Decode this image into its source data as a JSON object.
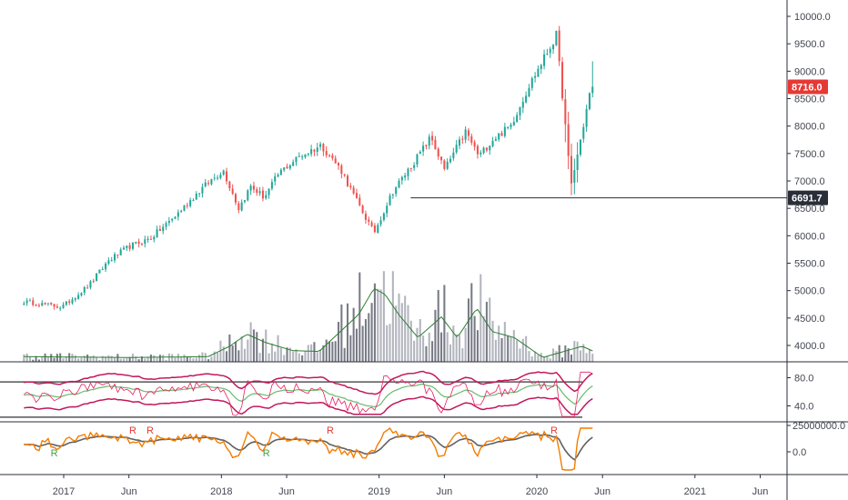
{
  "chart_data": {
    "type": "candlestick",
    "price_axis": {
      "ticks": [
        "10000.0",
        "9500.0",
        "9000.0",
        "8500.0",
        "8000.0",
        "7500.0",
        "7000.0",
        "6500.0",
        "6000.0",
        "5500.0",
        "5000.0",
        "4500.0",
        "4000.0"
      ],
      "range": [
        3800,
        10250
      ]
    },
    "x_axis": {
      "ticks": [
        "2017",
        "Jun",
        "2018",
        "Jun",
        "2019",
        "Jun",
        "2020",
        "Jun",
        "2021",
        "Jun"
      ],
      "range": [
        "2016-10-01",
        "2021-08-01"
      ]
    },
    "last_price": {
      "value": 8716.0,
      "label": "8716.0",
      "color": "#e53935"
    },
    "horizontal_line": {
      "value": 6691.7,
      "label": "6691.7",
      "start": "2019-03-15",
      "color": "#2a2e39"
    },
    "close_anchors": [
      {
        "date": "2016-10-01",
        "close": 4800
      },
      {
        "date": "2016-12-28",
        "close": 4700
      },
      {
        "date": "2017-03-01",
        "close": 5100
      },
      {
        "date": "2017-04-15",
        "close": 5550
      },
      {
        "date": "2017-06-01",
        "close": 5800
      },
      {
        "date": "2017-07-20",
        "close": 5950
      },
      {
        "date": "2017-09-15",
        "close": 6350
      },
      {
        "date": "2017-11-15",
        "close": 6850
      },
      {
        "date": "2018-01-05",
        "close": 7200
      },
      {
        "date": "2018-02-10",
        "close": 6500
      },
      {
        "date": "2018-03-10",
        "close": 6900
      },
      {
        "date": "2018-04-10",
        "close": 6700
      },
      {
        "date": "2018-05-15",
        "close": 7150
      },
      {
        "date": "2018-07-01",
        "close": 7450
      },
      {
        "date": "2018-08-20",
        "close": 7650
      },
      {
        "date": "2018-10-05",
        "close": 7200
      },
      {
        "date": "2018-10-30",
        "close": 6800
      },
      {
        "date": "2018-12-20",
        "close": 6050
      },
      {
        "date": "2019-02-01",
        "close": 6800
      },
      {
        "date": "2019-04-01",
        "close": 7450
      },
      {
        "date": "2019-05-01",
        "close": 7800
      },
      {
        "date": "2019-06-01",
        "close": 7200
      },
      {
        "date": "2019-07-20",
        "close": 7900
      },
      {
        "date": "2019-08-20",
        "close": 7450
      },
      {
        "date": "2019-09-20",
        "close": 7750
      },
      {
        "date": "2019-11-01",
        "close": 8000
      },
      {
        "date": "2019-12-15",
        "close": 8750
      },
      {
        "date": "2020-02-15",
        "close": 9650
      },
      {
        "date": "2020-03-01",
        "close": 8500
      },
      {
        "date": "2020-03-20",
        "close": 6900
      },
      {
        "date": "2020-04-15",
        "close": 7900
      },
      {
        "date": "2020-05-05",
        "close": 8700
      },
      {
        "date": "2020-05-12",
        "close": 8716
      }
    ],
    "volume": {
      "ma_anchors": [
        {
          "date": "2016-10-01",
          "v": 0.06
        },
        {
          "date": "2017-06-01",
          "v": 0.05
        },
        {
          "date": "2017-12-01",
          "v": 0.06
        },
        {
          "date": "2018-01-20",
          "v": 0.18
        },
        {
          "date": "2018-03-01",
          "v": 0.32
        },
        {
          "date": "2018-04-15",
          "v": 0.22
        },
        {
          "date": "2018-06-15",
          "v": 0.13
        },
        {
          "date": "2018-08-15",
          "v": 0.12
        },
        {
          "date": "2018-11-15",
          "v": 0.55
        },
        {
          "date": "2018-12-20",
          "v": 0.85
        },
        {
          "date": "2019-01-15",
          "v": 0.78
        },
        {
          "date": "2019-02-15",
          "v": 0.55
        },
        {
          "date": "2019-04-01",
          "v": 0.28
        },
        {
          "date": "2019-05-25",
          "v": 0.52
        },
        {
          "date": "2019-07-01",
          "v": 0.28
        },
        {
          "date": "2019-08-15",
          "v": 0.62
        },
        {
          "date": "2019-09-20",
          "v": 0.35
        },
        {
          "date": "2019-11-10",
          "v": 0.28
        },
        {
          "date": "2020-01-15",
          "v": 0.05
        },
        {
          "date": "2020-04-15",
          "v": 0.18
        },
        {
          "date": "2020-05-12",
          "v": 0.12
        }
      ]
    },
    "rsi": {
      "ticks": [
        "80.0",
        "40.0"
      ],
      "range": [
        20,
        100
      ]
    },
    "signal_labels": [
      {
        "text": "R",
        "date": "2017-06-10",
        "color": "#e53935"
      },
      {
        "text": "R",
        "date": "2017-07-20",
        "color": "#e53935"
      },
      {
        "text": "R",
        "date": "2018-09-10",
        "color": "#e53935"
      },
      {
        "text": "R",
        "date": "2020-02-10",
        "color": "#e53935"
      },
      {
        "text": "R",
        "date": "2016-12-10",
        "color": "#43a047"
      },
      {
        "text": "R",
        "date": "2018-04-15",
        "color": "#43a047"
      }
    ],
    "oscillator": {
      "ticks": [
        "25000000.0",
        "0.0"
      ]
    }
  }
}
